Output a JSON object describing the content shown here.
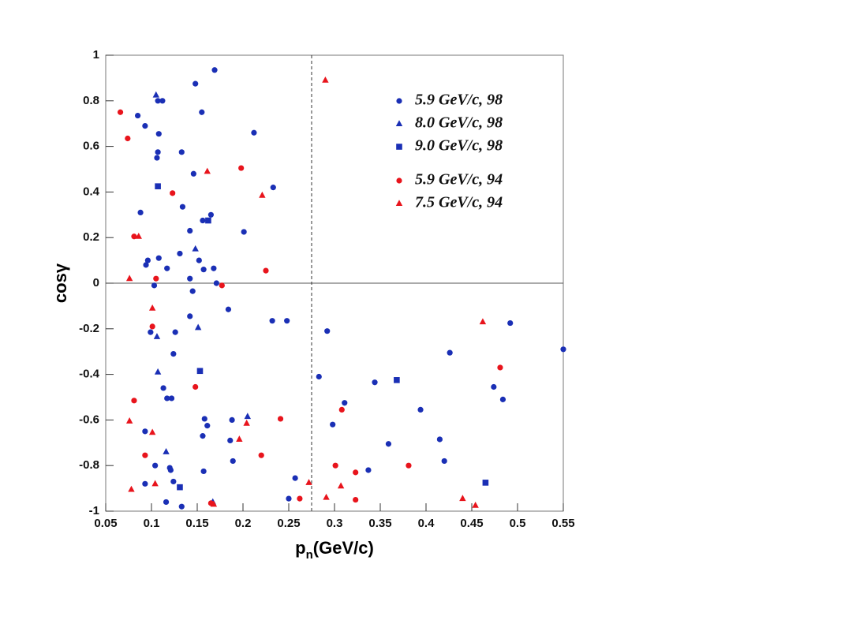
{
  "chart_data": {
    "type": "scatter",
    "xlabel_parts": [
      "p",
      "n",
      "(GeV/c)"
    ],
    "ylabel": "cosγ",
    "xlim": [
      0.05,
      0.55
    ],
    "ylim": [
      -1,
      1
    ],
    "xticks": [
      0.05,
      0.1,
      0.15,
      0.2,
      0.25,
      0.3,
      0.35,
      0.4,
      0.45,
      0.5,
      0.55
    ],
    "yticks": [
      -1,
      -0.8,
      -0.6,
      -0.4,
      -0.2,
      0,
      0.2,
      0.4,
      0.6,
      0.8,
      1
    ],
    "vline": 0.275,
    "hline": 0,
    "series": [
      {
        "name": "5.9 GeV/c, 98",
        "color": "#1a2fb5",
        "marker": "circle",
        "x": [
          0.169,
          0.148,
          0.155,
          0.085,
          0.107,
          0.112,
          0.093,
          0.108,
          0.212,
          0.107,
          0.106,
          0.133,
          0.146,
          0.233,
          0.134,
          0.088,
          0.165,
          0.156,
          0.142,
          0.201,
          0.096,
          0.094,
          0.108,
          0.131,
          0.152,
          0.117,
          0.157,
          0.168,
          0.142,
          0.171,
          0.103,
          0.145,
          0.184,
          0.142,
          0.232,
          0.248,
          0.292,
          0.492,
          0.55,
          0.426,
          0.099,
          0.126,
          0.124,
          0.283,
          0.344,
          0.474,
          0.113,
          0.117,
          0.122,
          0.311,
          0.484,
          0.394,
          0.158,
          0.188,
          0.161,
          0.298,
          0.093,
          0.156,
          0.186,
          0.415,
          0.359,
          0.189,
          0.42,
          0.104,
          0.12,
          0.121,
          0.157,
          0.337,
          0.093,
          0.124,
          0.257,
          0.25,
          0.116,
          0.133
        ],
        "y": [
          0.935,
          0.875,
          0.75,
          0.735,
          0.8,
          0.8,
          0.69,
          0.655,
          0.66,
          0.575,
          0.55,
          0.575,
          0.48,
          0.42,
          0.335,
          0.31,
          0.3,
          0.275,
          0.23,
          0.225,
          0.1,
          0.08,
          0.11,
          0.13,
          0.1,
          0.065,
          0.06,
          0.065,
          0.02,
          0.0,
          -0.01,
          -0.035,
          -0.115,
          -0.145,
          -0.165,
          -0.165,
          -0.21,
          -0.175,
          -0.29,
          -0.305,
          -0.215,
          -0.215,
          -0.31,
          -0.41,
          -0.435,
          -0.455,
          -0.46,
          -0.505,
          -0.505,
          -0.525,
          -0.51,
          -0.555,
          -0.595,
          -0.6,
          -0.625,
          -0.62,
          -0.65,
          -0.67,
          -0.69,
          -0.685,
          -0.705,
          -0.78,
          -0.78,
          -0.8,
          -0.81,
          -0.82,
          -0.825,
          -0.82,
          -0.88,
          -0.87,
          -0.855,
          -0.945,
          -0.96,
          -0.98
        ]
      },
      {
        "name": "8.0 GeV/c, 98",
        "color": "#1a2fb5",
        "marker": "triangle",
        "x": [
          0.105,
          0.148,
          0.151,
          0.106,
          0.107,
          0.116,
          0.205,
          0.167
        ],
        "y": [
          0.825,
          0.15,
          -0.195,
          -0.235,
          -0.39,
          -0.74,
          -0.585,
          -0.96
        ]
      },
      {
        "name": "9.0 GeV/c, 98",
        "color": "#1a2fb5",
        "marker": "square",
        "x": [
          0.107,
          0.162,
          0.153,
          0.368,
          0.465,
          0.131
        ],
        "y": [
          0.425,
          0.275,
          -0.385,
          -0.425,
          -0.875,
          -0.895
        ]
      },
      {
        "name": "5.9 GeV/c, 94",
        "color": "#e8141c",
        "marker": "circle",
        "x": [
          0.066,
          0.074,
          0.123,
          0.198,
          0.081,
          0.225,
          0.105,
          0.177,
          0.101,
          0.148,
          0.081,
          0.241,
          0.308,
          0.481,
          0.093,
          0.22,
          0.301,
          0.381,
          0.323,
          0.262,
          0.323,
          0.165
        ],
        "y": [
          0.75,
          0.635,
          0.395,
          0.505,
          0.205,
          0.055,
          0.02,
          -0.01,
          -0.19,
          -0.455,
          -0.515,
          -0.595,
          -0.555,
          -0.37,
          -0.755,
          -0.755,
          -0.8,
          -0.8,
          -0.83,
          -0.945,
          -0.95,
          -0.965
        ]
      },
      {
        "name": "7.5 GeV/c, 94",
        "color": "#e8141c",
        "marker": "triangle",
        "x": [
          0.29,
          0.161,
          0.221,
          0.086,
          0.076,
          0.101,
          0.462,
          0.076,
          0.101,
          0.204,
          0.196,
          0.104,
          0.078,
          0.272,
          0.307,
          0.291,
          0.44,
          0.454,
          0.168
        ],
        "y": [
          0.89,
          0.49,
          0.385,
          0.205,
          0.02,
          -0.11,
          -0.17,
          -0.605,
          -0.655,
          -0.615,
          -0.685,
          -0.88,
          -0.905,
          -0.875,
          -0.89,
          -0.94,
          -0.945,
          -0.975,
          -0.97
        ]
      }
    ]
  }
}
